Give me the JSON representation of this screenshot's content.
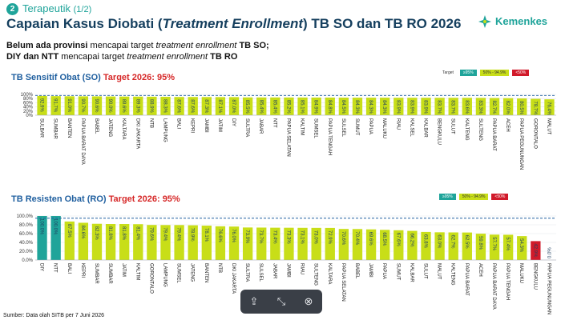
{
  "header": {
    "badge": "2",
    "section": "Terapeutik",
    "section_fraction": "(1/2)",
    "title_pre": "Capaian Kasus Diobati (",
    "title_italic": "Treatment Enrollment",
    "title_post": ") TB SO dan TB RO 2026",
    "sub1_bold": "Belum ada provinsi",
    "sub1_mid": " mencapai target ",
    "sub1_italic": "treatment enrollment",
    "sub1_end": "TB SO;",
    "sub2_bold": "DIY dan NTT",
    "sub2_mid": " mencapai target ",
    "sub2_italic": "treatment enrollment",
    "sub2_end": "TB RO"
  },
  "logo": {
    "text": "Kemenkes"
  },
  "legend": {
    "label": "Target",
    "items": [
      {
        "label": "≥95%",
        "color": "#1fa49a"
      },
      {
        "label": "50% - 94.9%",
        "color": "#c8de18"
      },
      {
        "label": "<50%",
        "color": "#d11a2a"
      }
    ]
  },
  "charts": {
    "so": {
      "title_a": "TB Sensitif Obat (SO)",
      "title_b": "Target 2026: 95%"
    },
    "ro": {
      "title_a": "TB Resisten Obat (RO)",
      "title_b": "Target 2026: 95%"
    }
  },
  "chart_data": [
    {
      "type": "bar",
      "title": "TB Sensitif Obat (SO) Target 2026: 95%",
      "ylim": [
        0,
        100
      ],
      "yticks": [
        "0%",
        "20%",
        "40%",
        "60%",
        "80%",
        "100%"
      ],
      "target_line": 95,
      "categories": [
        "SULBAR",
        "SUMBAR",
        "BANTEN",
        "PAPUA BARAT DAYA",
        "BABEL",
        "JATENG",
        "KALTARA",
        "DKI JAKARTA",
        "NTB",
        "LAMPUNG",
        "BALI",
        "KEPRI",
        "JAMBI",
        "JATIM",
        "DIY",
        "SULTRA",
        "JABAR",
        "NTT",
        "PAPUA SELATAN",
        "KALTIM",
        "SUMSEL",
        "PAPUA TENGAH",
        "SULSEL",
        "SUMUT",
        "PAPUA",
        "MALUKU",
        "RIAU",
        "KALSEL",
        "KALBAR",
        "BENGKULU",
        "SULUT",
        "KALTENG",
        "SULTENG",
        "PAPUA BARAT",
        "ACEH",
        "PAPUA PEGUNUNGAN",
        "GORONTALO",
        "MALUT"
      ],
      "values": [
        92.9,
        91.7,
        91.0,
        90.7,
        90.6,
        90.0,
        89.6,
        89.3,
        88.9,
        88.3,
        87.6,
        87.6,
        87.3,
        87.1,
        87.0,
        85.5,
        85.4,
        85.4,
        85.2,
        85.1,
        84.9,
        84.8,
        84.5,
        84.3,
        84.3,
        84.3,
        83.9,
        83.9,
        83.9,
        83.7,
        83.7,
        83.6,
        83.3,
        82.7,
        82.0,
        80.5,
        78.7,
        76.4
      ],
      "value_labels": [
        "92.9%",
        "91.7%",
        "91.0%",
        "90.7%",
        "90.6%",
        "90.0%",
        "89.6%",
        "89.3%",
        "88.9%",
        "88.3%",
        "87.6%",
        "87.6%",
        "87.3%",
        "87.1%",
        "87.0%",
        "85.5%",
        "85.4%",
        "85.4%",
        "85.2%",
        "85.1%",
        "84.9%",
        "84.8%",
        "84.5%",
        "84.3%",
        "84.3%",
        "84.3%",
        "83.9%",
        "83.9%",
        "83.9%",
        "83.7%",
        "83.7%",
        "83.6%",
        "83.3%",
        "82.7%",
        "82.0%",
        "80.5%",
        "78.7%",
        "76.4%"
      ],
      "colors": {
        "bar": "#c8de18"
      }
    },
    {
      "type": "bar",
      "title": "TB Resisten Obat (RO) Target 2026: 95%",
      "ylim": [
        0,
        100
      ],
      "yticks": [
        "0.0%",
        "20.0%",
        "40.0%",
        "60.0%",
        "80.0%",
        "100.0%"
      ],
      "target_line": 95,
      "categories": [
        "DIY",
        "NTT",
        "BALI",
        "KEPRI",
        "SUMBAR",
        "SUMBAR",
        "JATIM",
        "KALTIM",
        "GORONTALO",
        "LAMPUNG",
        "SUMSEL",
        "JATENG",
        "BANTEN",
        "NTB",
        "DKI JAKARTA",
        "SULTRA",
        "SULSEL",
        "JABAR",
        "JAMBI",
        "RIAU",
        "SULTENG",
        "KALTARA",
        "PAPUA SELATAN",
        "BABEL",
        "JAMBI",
        "PAPUA",
        "SUMUT",
        "KALBAR",
        "SULUT",
        "MALUT",
        "KALTENG",
        "PAPUA BARAT",
        "ACEH",
        "PAPUA BARAT DAYA",
        "PAPUA TENGAH",
        "MALUKU",
        "BENGKULU",
        "PAPUA PEGUNUNGAN"
      ],
      "values": [
        100.0,
        100.0,
        87.5,
        84.6,
        82.3,
        81.8,
        81.8,
        81.4,
        79.6,
        79.4,
        79.4,
        78.9,
        78.1,
        76.6,
        76.0,
        73.9,
        73.7,
        73.4,
        73.3,
        73.1,
        73.0,
        72.9,
        70.6,
        70.4,
        69.6,
        68.5,
        67.6,
        66.2,
        63.8,
        63.0,
        62.7,
        62.5,
        59.8,
        57.7,
        57.4,
        54.3,
        42.9,
        0.0
      ],
      "value_labels": [
        "100.0%",
        "100.0%",
        "87.5%",
        "84.6%",
        "82.3%",
        "81.8%",
        "81.8%",
        "81.4%",
        "79.6%",
        "79.4%",
        "79.4%",
        "78.9%",
        "78.1%",
        "76.6%",
        "76.0%",
        "73.9%",
        "73.7%",
        "73.4%",
        "73.3%",
        "73.1%",
        "73.0%",
        "72.9%",
        "70.6%",
        "70.4%",
        "69.6%",
        "68.5%",
        "67.6%",
        "66.2%",
        "63.8%",
        "63.0%",
        "62.7%",
        "62.5%",
        "59.8%",
        "57.7%",
        "57.4%",
        "54.3%",
        "42.9%",
        "0.0%"
      ],
      "colors": {
        "high": "#1fa49a",
        "mid": "#c8de18",
        "low": "#d11a2a"
      }
    }
  ],
  "source": "Sumber: Data olah SITB per 7 Juni 2026",
  "toolbar": {
    "share": "share-icon",
    "collapse": "collapse-icon",
    "close": "close-icon"
  }
}
